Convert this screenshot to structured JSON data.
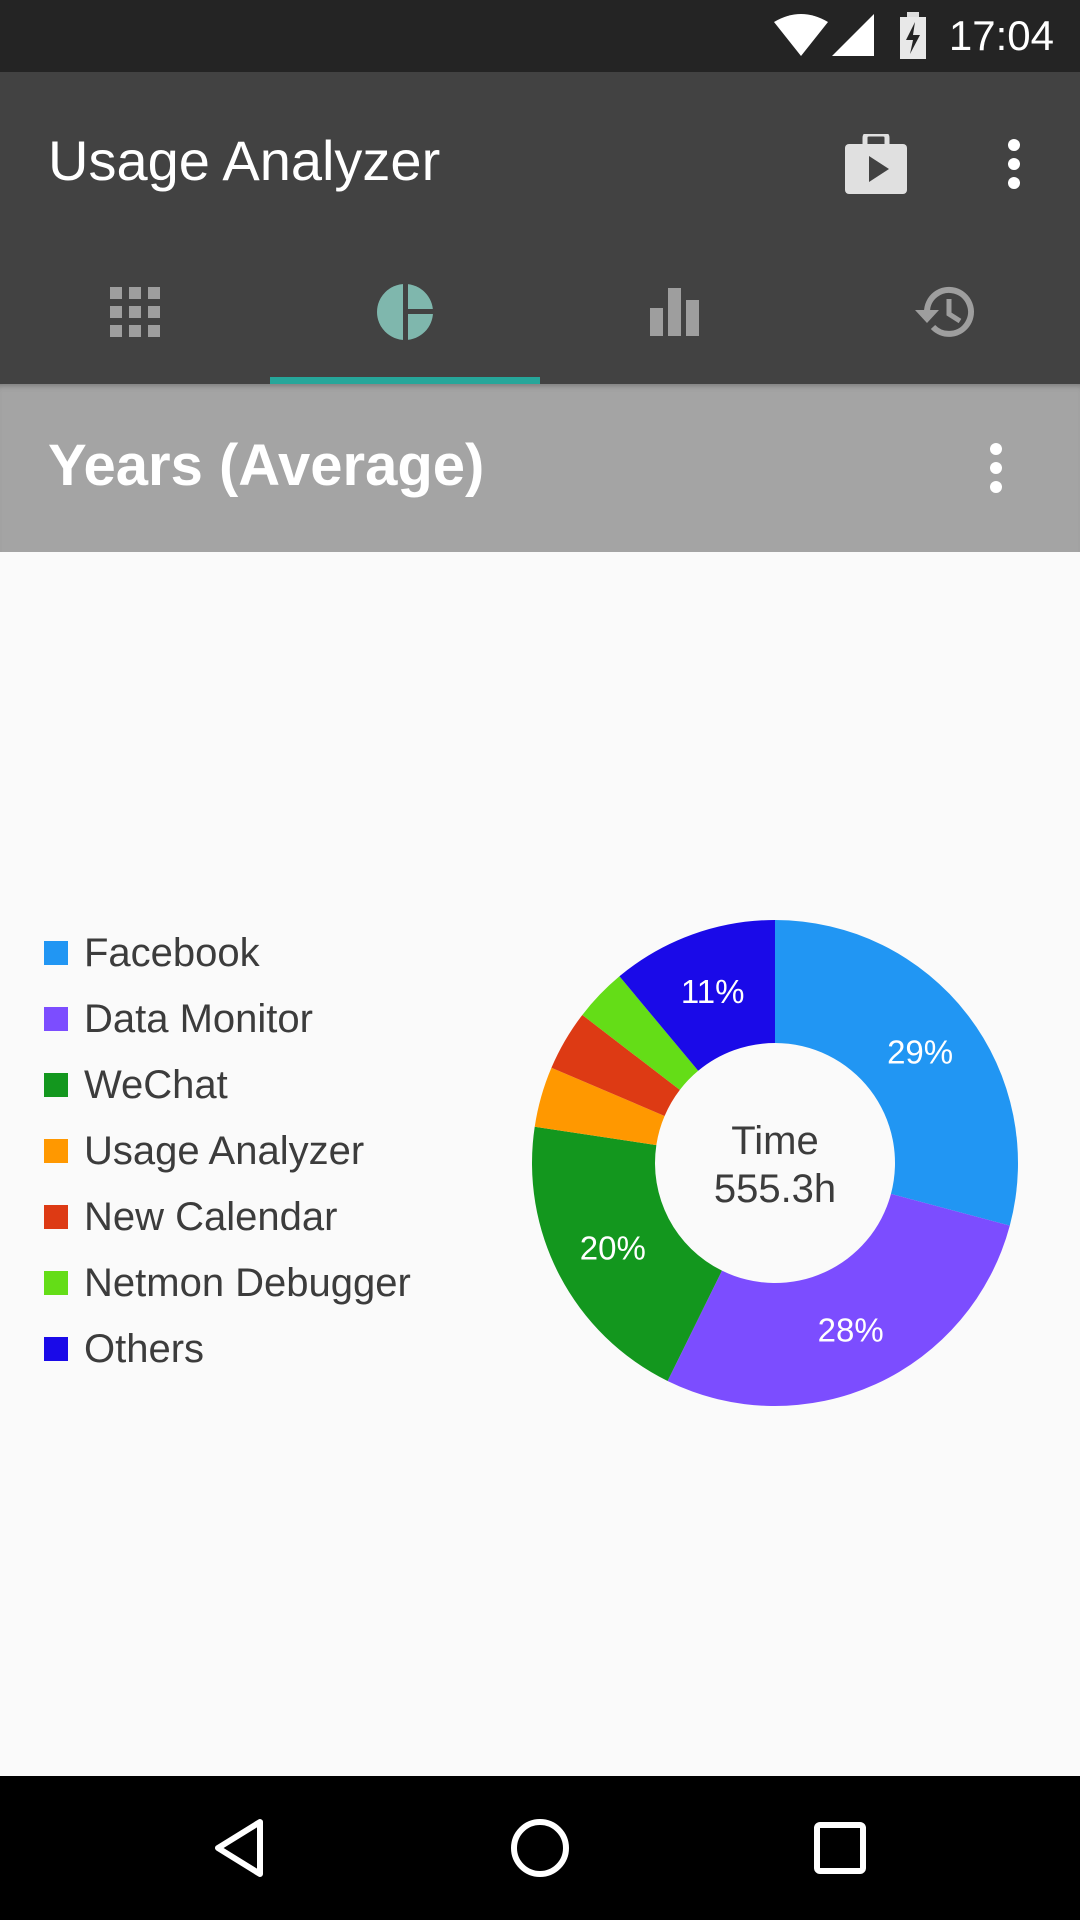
{
  "status_bar": {
    "time": "17:04",
    "icons": [
      "wifi-icon",
      "cell-signal-icon",
      "battery-charging-icon"
    ]
  },
  "app_bar": {
    "title": "Usage Analyzer",
    "actions": [
      "play-store-icon",
      "more-vert-icon"
    ]
  },
  "tabs": [
    {
      "icon": "apps-grid-icon",
      "selected": false
    },
    {
      "icon": "pie-chart-icon",
      "selected": true
    },
    {
      "icon": "bar-chart-icon",
      "selected": false
    },
    {
      "icon": "history-icon",
      "selected": false
    }
  ],
  "colors": {
    "accent": "#26a69a",
    "app_bar": "#424242",
    "sub_header": "#a4a4a4"
  },
  "sub_header": {
    "title": "Years (Average)"
  },
  "chart_data": {
    "type": "pie",
    "center_label": "Time",
    "center_value": "555.3h",
    "legend_position": "left",
    "slices": [
      {
        "name": "Facebook",
        "value": 29,
        "label": "29%",
        "color": "#2196f3"
      },
      {
        "name": "Data Monitor",
        "value": 28,
        "label": "28%",
        "color": "#7c4dff"
      },
      {
        "name": "WeChat",
        "value": 20,
        "label": "20%",
        "color": "#13971e"
      },
      {
        "name": "Usage Analyzer",
        "value": 4,
        "label": "",
        "color": "#ff9800"
      },
      {
        "name": "New Calendar",
        "value": 4,
        "label": "",
        "color": "#dd3a14"
      },
      {
        "name": "Netmon Debugger",
        "value": 3.5,
        "label": "",
        "color": "#64dd17"
      },
      {
        "name": "Others",
        "value": 11,
        "label": "11%",
        "color": "#1a0ae8"
      }
    ]
  },
  "nav_bar": {
    "buttons": [
      "back-icon",
      "home-icon",
      "recents-icon"
    ]
  }
}
